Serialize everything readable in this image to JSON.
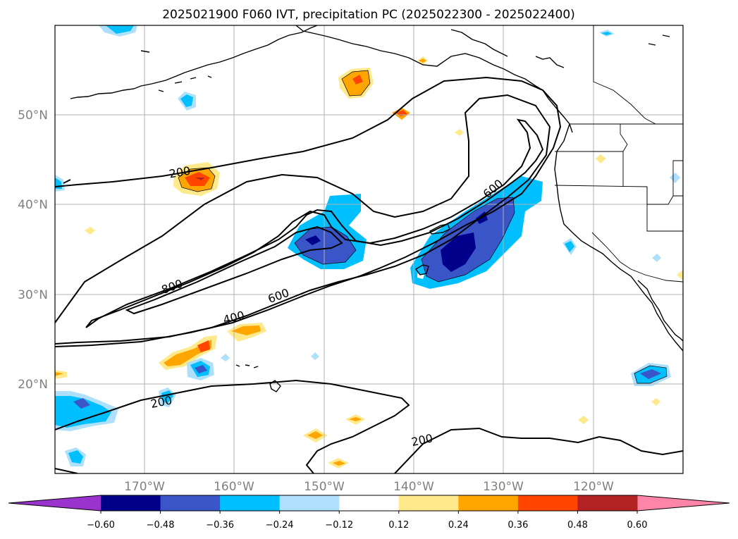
{
  "title": "2025021900 F060 IVT, precipitation PC (2025022300 - 2025022400)",
  "lat_labels": [
    "50°N",
    "40°N",
    "30°N",
    "20°N"
  ],
  "lon_labels": [
    "170°W",
    "160°W",
    "150°W",
    "140°W",
    "130°W",
    "120°W"
  ],
  "contour_labels": [
    {
      "text": "200"
    },
    {
      "text": "200"
    },
    {
      "text": "200"
    },
    {
      "text": "400"
    },
    {
      "text": "600"
    },
    {
      "text": "600"
    },
    {
      "text": "800"
    }
  ],
  "colorbar": {
    "tick_labels": [
      "−0.60",
      "−0.48",
      "−0.36",
      "−0.24",
      "−0.12",
      "0.12",
      "0.24",
      "0.36",
      "0.48",
      "0.60"
    ],
    "colors": [
      "#9933cc",
      "#00008b",
      "#3a55c8",
      "#00bfff",
      "#aee0fb",
      "#ffffff",
      "#ffe98a",
      "#ffa500",
      "#ff4500",
      "#b22222",
      "#ff85a8"
    ]
  }
}
